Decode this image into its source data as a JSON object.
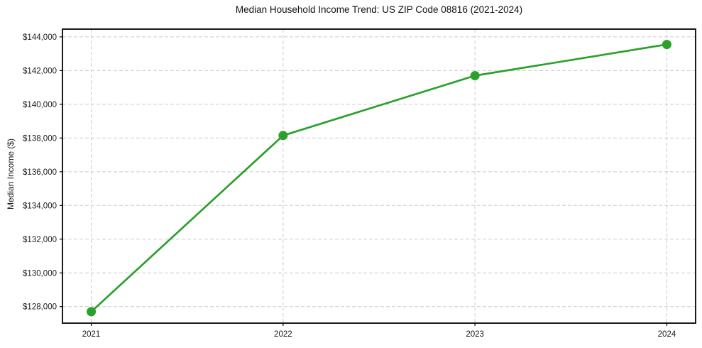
{
  "chart_data": {
    "type": "line",
    "title": "Median Household Income Trend: US ZIP Code 08816 (2021-2024)",
    "xlabel": "",
    "ylabel": "Median Income ($)",
    "x": [
      2021,
      2022,
      2023,
      2024
    ],
    "categories": [
      "2021",
      "2022",
      "2023",
      "2024"
    ],
    "values": [
      127700,
      138150,
      141700,
      143550
    ],
    "yticks": [
      128000,
      130000,
      132000,
      134000,
      136000,
      138000,
      140000,
      142000,
      144000
    ],
    "ytick_labels": [
      "$128,000",
      "$130,000",
      "$132,000",
      "$134,000",
      "$136,000",
      "$138,000",
      "$140,000",
      "$142,000",
      "$144,000"
    ],
    "xlim": [
      2020.85,
      2024.15
    ],
    "ylim": [
      127020,
      144460
    ],
    "grid": true,
    "grid_style": "dashed",
    "legend": false,
    "colors": {
      "line": "#2ca02c",
      "marker": "#2ca02c",
      "grid": "#cccccc",
      "spine": "#000000",
      "text": "#1a1a1a",
      "background": "#ffffff"
    }
  }
}
